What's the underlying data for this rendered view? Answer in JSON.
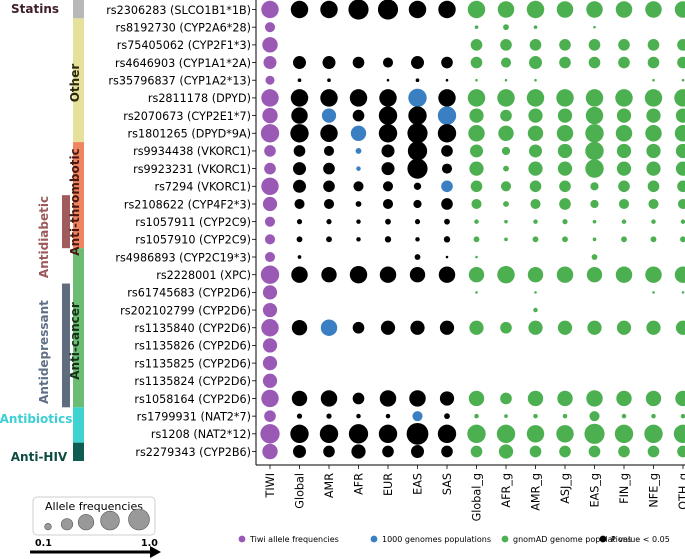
{
  "chart_data": {
    "type": "scatter",
    "title": "",
    "xlabel": "",
    "ylabel": "",
    "columns": [
      "TIWI",
      "Global",
      "AMR",
      "AFR",
      "EUR",
      "EAS",
      "SAS",
      "Global_g",
      "AFR_g",
      "AMR_g",
      "ASJ_g",
      "EAS_g",
      "FIN_g",
      "NFE_g",
      "OTH_g"
    ],
    "column_groups": [
      "tiwi",
      "kg",
      "kg",
      "kg",
      "kg",
      "kg",
      "kg",
      "gnomad",
      "gnomad",
      "gnomad",
      "gnomad",
      "gnomad",
      "gnomad",
      "gnomad",
      "gnomad"
    ],
    "rows": [
      "rs2306283  (SLCO1B1*1B)",
      "rs8192730 (CYP2A6*28)",
      "rs75405062 (CYP2F1*3)",
      "rs4646903 (CYP1A1*2A)",
      "rs35796837 (CYP1A2*13)",
      "rs2811178 (DPYD)",
      "rs2070673 (CYP2E1*7)",
      "rs1801265 (DPYD*9A)",
      "rs9934438 (VKORC1)",
      "rs9923231 (VKORC1)",
      "rs7294 (VKORC1)",
      "rs2108622 (CYP4F2*3)",
      "rs1057911 (CYP2C9)",
      "rs1057910 (CYP2C9)",
      "rs4986893 (CYP2C19*3)",
      "rs2228001 (XPC)",
      "rs61745683 (CYP2D6)",
      "rs202102799 (CYP2D6)",
      "rs1135840 (CYP2D6)",
      "rs1135826 (CYP2D6)",
      "rs1135825 (CYP2D6)",
      "rs1135824 (CYP2D6)",
      "rs1058164 (CYP2D6)",
      "rs1799931 (NAT2*7)",
      "rs1208 (NAT2*12)",
      "rs2279343 (CYP2B6)"
    ],
    "allele_frequencies": [
      [
        0.45,
        0.45,
        0.45,
        0.6,
        0.6,
        0.45,
        0.45,
        0.45,
        0.4,
        0.45,
        0.4,
        0.4,
        0.4,
        0.4,
        0.4
      ],
      [
        0.15,
        0,
        0,
        0,
        0,
        0,
        0,
        0.02,
        0.05,
        0.02,
        0,
        0.01,
        0,
        0,
        0
      ],
      [
        0.35,
        0,
        0,
        0,
        0,
        0,
        0,
        0.2,
        0.2,
        0.2,
        0.2,
        0.2,
        0.2,
        0.2,
        0.2
      ],
      [
        0.25,
        0.25,
        0.25,
        0.2,
        0.15,
        0.25,
        0.2,
        0.2,
        0.15,
        0.25,
        0.2,
        0.2,
        0.2,
        0.2,
        0.2
      ],
      [
        0.12,
        0.02,
        0.02,
        0,
        0.01,
        0.02,
        0.01,
        0.01,
        0.01,
        0.01,
        0,
        0,
        0,
        0.01,
        0.01
      ],
      [
        0.45,
        0.45,
        0.45,
        0.45,
        0.45,
        0.5,
        0.45,
        0.45,
        0.45,
        0.45,
        0.45,
        0.45,
        0.45,
        0.45,
        0.45
      ],
      [
        0.35,
        0.4,
        0.3,
        0.2,
        0.5,
        0.5,
        0.5,
        0.3,
        0.2,
        0.3,
        0.3,
        0.45,
        0.3,
        0.3,
        0.3
      ],
      [
        0.5,
        0.5,
        0.45,
        0.35,
        0.5,
        0.6,
        0.5,
        0.4,
        0.35,
        0.35,
        0.4,
        0.5,
        0.4,
        0.4,
        0.4
      ],
      [
        0.2,
        0.2,
        0.15,
        0.05,
        0.25,
        0.55,
        0.2,
        0.25,
        0.1,
        0.25,
        0.3,
        0.5,
        0.3,
        0.3,
        0.3
      ],
      [
        0.2,
        0.25,
        0.2,
        0.03,
        0.25,
        0.6,
        0.15,
        0.3,
        0.05,
        0.3,
        0.3,
        0.5,
        0.3,
        0.3,
        0.3
      ],
      [
        0.45,
        0.25,
        0.2,
        0.15,
        0.15,
        0.08,
        0.2,
        0.2,
        0.15,
        0.2,
        0.2,
        0.1,
        0.2,
        0.2,
        0.2
      ],
      [
        0.3,
        0.15,
        0.15,
        0.05,
        0.15,
        0.1,
        0.2,
        0.15,
        0.05,
        0.15,
        0.2,
        0.1,
        0.15,
        0.15,
        0.15
      ],
      [
        0.15,
        0.04,
        0.04,
        0.03,
        0.05,
        0.04,
        0.05,
        0.03,
        0.02,
        0.03,
        0.04,
        0.02,
        0.03,
        0.03,
        0.03
      ],
      [
        0.15,
        0.05,
        0.05,
        0.03,
        0.06,
        0.03,
        0.06,
        0.05,
        0.02,
        0.05,
        0.05,
        0.02,
        0.05,
        0.05,
        0.05
      ],
      [
        0.15,
        0.02,
        0,
        0,
        0,
        0.05,
        0.01,
        0.01,
        0,
        0,
        0,
        0.05,
        0,
        0,
        0
      ],
      [
        0.5,
        0.4,
        0.35,
        0.45,
        0.4,
        0.35,
        0.4,
        0.35,
        0.45,
        0.35,
        0.4,
        0.35,
        0.4,
        0.4,
        0.4
      ],
      [
        0.3,
        0,
        0,
        0,
        0,
        0,
        0,
        0.01,
        0,
        0.01,
        0,
        0,
        0,
        0.01,
        0.01
      ],
      [
        0.3,
        0,
        0,
        0,
        0,
        0,
        0,
        0,
        0,
        0.03,
        0,
        0,
        0,
        0,
        0
      ],
      [
        0.45,
        0.35,
        0.4,
        0.2,
        0.3,
        0.3,
        0.3,
        0.3,
        0.2,
        0.3,
        0.3,
        0.3,
        0.3,
        0.3,
        0.3
      ],
      [
        0.3,
        0,
        0,
        0,
        0,
        0,
        0,
        0,
        0,
        0,
        0,
        0,
        0,
        0,
        0
      ],
      [
        0.3,
        0,
        0,
        0,
        0,
        0,
        0,
        0,
        0,
        0,
        0,
        0,
        0,
        0,
        0
      ],
      [
        0.3,
        0,
        0,
        0,
        0,
        0,
        0,
        0,
        0,
        0,
        0,
        0,
        0,
        0,
        0
      ],
      [
        0.45,
        0.35,
        0.4,
        0.2,
        0.4,
        0.4,
        0.3,
        0.35,
        0.2,
        0.35,
        0.35,
        0.4,
        0.35,
        0.35,
        0.35
      ],
      [
        0.2,
        0.04,
        0.04,
        0.03,
        0.03,
        0.15,
        0.05,
        0.03,
        0.02,
        0.03,
        0.03,
        0.15,
        0.03,
        0.03,
        0.03
      ],
      [
        0.55,
        0.5,
        0.5,
        0.55,
        0.5,
        0.7,
        0.5,
        0.5,
        0.5,
        0.45,
        0.45,
        0.6,
        0.5,
        0.5,
        0.5
      ],
      [
        0.35,
        0.25,
        0.2,
        0.3,
        0.2,
        0.25,
        0.2,
        0.2,
        0.3,
        0.2,
        0.2,
        0.2,
        0.2,
        0.2,
        0.2
      ]
    ],
    "non_significant_1000g": [
      [
        6,
        2
      ],
      [
        6,
        6
      ],
      [
        7,
        3
      ],
      [
        8,
        3
      ],
      [
        9,
        3
      ],
      [
        10,
        6
      ],
      [
        18,
        2
      ],
      [
        23,
        5
      ],
      [
        5,
        5
      ]
    ],
    "categories": [
      {
        "label": "Statins",
        "color": "#3d1e2b",
        "bar_color": "#b8b8b8",
        "from_row": 0,
        "to_row": 0
      },
      {
        "label": "Other",
        "color": "#2a2a0a",
        "bar_color": "#e7e09d",
        "from_row": 1,
        "to_row": 7
      },
      {
        "label": "Anti-thrombotic",
        "color": "#4a1810",
        "bar_color": "#ef8461",
        "from_row": 8,
        "to_row": 13
      },
      {
        "label": "Antidiabetic",
        "color": "#9b5a5a",
        "bar_color": "#a05c5c",
        "from_row": 11,
        "to_row": 13
      },
      {
        "label": "Anti-cancer",
        "color": "#16301a",
        "bar_color": "#6cbd73",
        "from_row": 14,
        "to_row": 22
      },
      {
        "label": "Antidepressant",
        "color": "#5f6f86",
        "bar_color": "#5f6c7e",
        "from_row": 16,
        "to_row": 22
      },
      {
        "label": "Antibiotics",
        "color": "#3ccfd4",
        "bar_color": "#3ed3d0",
        "from_row": 23,
        "to_row": 24
      },
      {
        "label": "Anti-HIV",
        "color": "#0f4a43",
        "bar_color": "#0f5c52",
        "from_row": 25,
        "to_row": 25
      }
    ],
    "size_legend": {
      "title": "Allele frequencies",
      "min_label": "0.1",
      "max_label": "1.0",
      "sizes": [
        0.1,
        0.3,
        0.55,
        0.8,
        1.0
      ]
    },
    "legend": [
      {
        "label": "Tiwi allele frequencies",
        "color": "#9b59b6"
      },
      {
        "label": "1000 genomes populations",
        "color": "#3a7fc1"
      },
      {
        "label": "gnomAD genome populations",
        "color": "#4caf50"
      },
      {
        "label": "P value < 0.05",
        "color": "#000000"
      }
    ],
    "colors": {
      "tiwi": "#9b59b6",
      "kg_blue": "#3a7fc1",
      "significant": "#000000",
      "gnomad": "#4caf50"
    }
  }
}
